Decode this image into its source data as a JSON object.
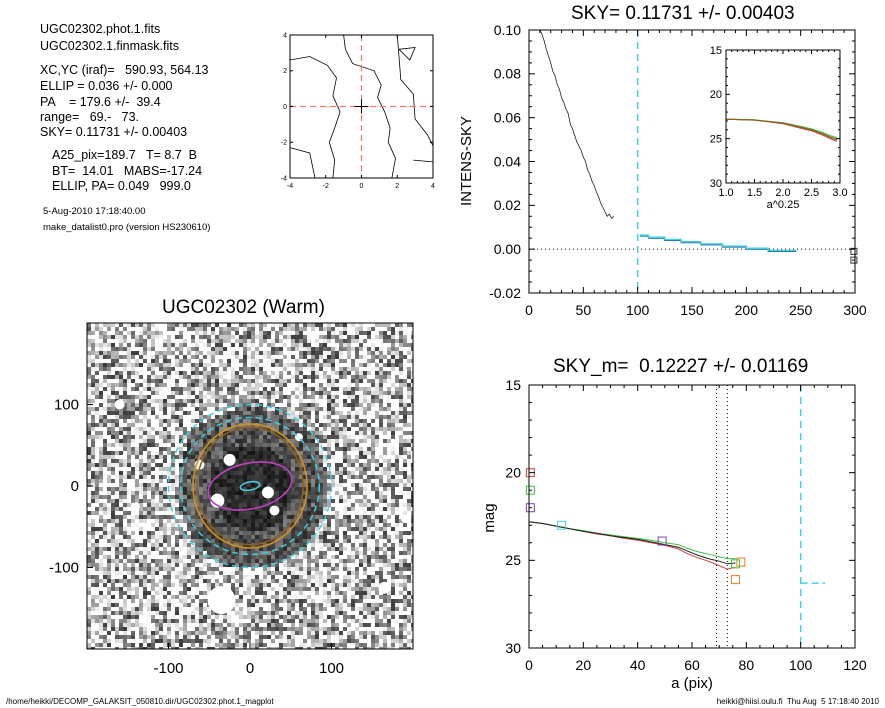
{
  "info": {
    "lines": [
      "UGC02302.phot.1.fits",
      "UGC02302.1.finmask.fits",
      "XC,YC (iraf)=   590.93, 564.13",
      "ELLIP = 0.036 +/- 0.000",
      "PA    = 179.6 +/-  39.4",
      "range=   69.-   73.",
      "SKY= 0.11731 +/- 0.00403",
      "A25_pix=189.7   T= 8.7  B",
      "BT=  14.01   MABS=-17.24",
      "ELLIP, PA= 0.049   999.0",
      "5-Aug-2010 17:18:40.00",
      "make_datalist0.pro (version HS230610)"
    ]
  },
  "footer": {
    "left": "/home/heikki/DECOMP_GALAKSIT_050810.dir/UGC02302.phot.1_magplot",
    "right": "heikki@hiisi.oulu.fi  Thu Aug  5 17:18:40 2010"
  },
  "colors": {
    "sky_line": "#40d0e0",
    "red_dash": "#ff7070",
    "trace_black": "#202020",
    "green": "#40c040",
    "red": "#d04040",
    "brown": "#8a6020",
    "purple": "#8040a0",
    "orange": "#e08020",
    "magenta": "#c040c0",
    "gold": "#d09020"
  },
  "chart_data": [
    {
      "id": "contour",
      "type": "contour",
      "title": "",
      "xlim": [
        -4,
        4
      ],
      "ylim": [
        -4,
        4
      ],
      "xticks": [
        -4,
        -2,
        0,
        2,
        4
      ],
      "yticks": [
        -4,
        -2,
        0,
        2,
        4
      ],
      "contours": [
        [
          [
            -4,
            2.6
          ],
          [
            -2.9,
            2.8
          ],
          [
            -1.9,
            2.3
          ],
          [
            -1.4,
            1.6
          ],
          [
            -1.6,
            0.6
          ],
          [
            -1.2,
            -0.3
          ],
          [
            -1.5,
            -1.2
          ],
          [
            -1.8,
            -2.0
          ],
          [
            -1.5,
            -3.0
          ],
          [
            -1.6,
            -4
          ]
        ],
        [
          [
            -1.0,
            4
          ],
          [
            -0.9,
            3.2
          ],
          [
            -0.5,
            2.4
          ],
          [
            0.7,
            2.0
          ],
          [
            1.1,
            1.2
          ],
          [
            0.9,
            0.5
          ],
          [
            1.3,
            -0.3
          ],
          [
            1.6,
            -1.2
          ],
          [
            1.5,
            -2.0
          ],
          [
            1.9,
            -2.9
          ],
          [
            1.7,
            -4
          ]
        ],
        [
          [
            2.1,
            3.2
          ],
          [
            3.0,
            3.3
          ],
          [
            2.7,
            2.6
          ],
          [
            2.1,
            3.2
          ]
        ],
        [
          [
            2.0,
            4
          ],
          [
            2.2,
            1.5
          ],
          [
            2.9,
            0.7
          ],
          [
            3.0,
            -0.7
          ],
          [
            3.7,
            -1.6
          ],
          [
            4,
            -2.2
          ]
        ],
        [
          [
            -4,
            -2.3
          ],
          [
            -2.9,
            -2.6
          ],
          [
            -2.6,
            -4
          ]
        ],
        [
          [
            2.9,
            -3.0
          ],
          [
            4,
            -3.1
          ]
        ]
      ],
      "crosshair": [
        0,
        0
      ]
    },
    {
      "id": "profile",
      "type": "line",
      "title": "SKY= 0.11731 +/- 0.00403",
      "xlabel": "",
      "ylabel": "INTENS-SKY",
      "xlim": [
        0,
        300
      ],
      "ylim": [
        -0.02,
        0.1
      ],
      "xticks": [
        0,
        50,
        100,
        150,
        200,
        250,
        300
      ],
      "yticks": [
        -0.02,
        0.0,
        0.02,
        0.04,
        0.06,
        0.08,
        0.1
      ],
      "ytick_labels": [
        "-0.02",
        "0.00",
        "0.02",
        "0.04",
        "0.06",
        "0.08",
        "0.10"
      ],
      "vline": 100,
      "hline": 0,
      "series": [
        {
          "color": "trace_black",
          "x": [
            10,
            12,
            14,
            16,
            18,
            20,
            22,
            24,
            26,
            28,
            30,
            32,
            34,
            36,
            38,
            40,
            42,
            44,
            46,
            48,
            50,
            52,
            54,
            56,
            58,
            60,
            62,
            64,
            66,
            68,
            70,
            72,
            74,
            76,
            78
          ],
          "y": [
            0.1,
            0.098,
            0.095,
            0.091,
            0.088,
            0.085,
            0.081,
            0.079,
            0.075,
            0.073,
            0.069,
            0.067,
            0.064,
            0.062,
            0.057,
            0.055,
            0.052,
            0.049,
            0.047,
            0.045,
            0.042,
            0.04,
            0.036,
            0.034,
            0.031,
            0.029,
            0.026,
            0.024,
            0.021,
            0.019,
            0.017,
            0.015,
            0.016,
            0.014,
            0.015
          ]
        },
        {
          "color": "sky_line",
          "x": [
            102,
            110,
            110,
            125,
            125,
            140,
            140,
            158,
            158,
            178,
            178,
            200,
            200,
            220,
            220,
            246
          ],
          "y": [
            0.006,
            0.006,
            0.005,
            0.005,
            0.004,
            0.004,
            0.003,
            0.003,
            0.002,
            0.002,
            0.001,
            0.001,
            0.0,
            0.0,
            -0.001,
            -0.001
          ]
        }
      ],
      "edge_markers": [
        [
          299,
          -0.001
        ],
        [
          299,
          -0.005
        ]
      ]
    },
    {
      "id": "inset",
      "type": "line",
      "title": "",
      "xlabel": "a^0.25",
      "ylabel": "",
      "xlim": [
        1.0,
        3.0
      ],
      "ylim": [
        30,
        15
      ],
      "xticks": [
        1.0,
        1.5,
        2.0,
        2.5,
        3.0
      ],
      "xtick_labels": [
        "1.0",
        "1.5",
        "2.0",
        "2.5",
        "3.0"
      ],
      "yticks": [
        15,
        20,
        25,
        30
      ],
      "series": [
        {
          "color": "red",
          "x": [
            1.0,
            1.5,
            2.0,
            2.3,
            2.5,
            2.7,
            2.8,
            2.95
          ],
          "y": [
            22.8,
            22.9,
            23.3,
            23.8,
            24.1,
            24.6,
            24.9,
            25.3
          ]
        },
        {
          "color": "green",
          "x": [
            1.0,
            1.5,
            2.0,
            2.3,
            2.5,
            2.7,
            2.8,
            2.95
          ],
          "y": [
            22.8,
            22.9,
            23.2,
            23.6,
            23.9,
            24.3,
            24.6,
            24.9
          ]
        },
        {
          "color": "brown",
          "x": [
            1.0,
            1.5,
            2.0,
            2.3,
            2.5,
            2.7,
            2.8,
            2.95
          ],
          "y": [
            22.8,
            22.9,
            23.25,
            23.7,
            24.0,
            24.45,
            24.75,
            25.1
          ]
        }
      ]
    },
    {
      "id": "image",
      "type": "image",
      "title": "UGC02302 (Warm)",
      "xlim": [
        -200,
        200
      ],
      "ylim": [
        -200,
        200
      ],
      "xticks": [
        -100,
        0,
        100
      ],
      "yticks": [
        -100,
        0,
        100
      ],
      "ellipses": [
        {
          "color": "sky_line",
          "a": 100,
          "b": 100,
          "angle": 0,
          "dashed": true
        },
        {
          "color": "sky_line",
          "a": 85,
          "b": 84,
          "angle": 0,
          "dashed": true
        },
        {
          "color": "gold",
          "a": 70,
          "b": 76,
          "angle": 0,
          "dashed": false
        },
        {
          "color": "brown",
          "a": 65,
          "b": 72,
          "angle": 0,
          "dashed": false
        },
        {
          "color": "magenta",
          "a": 52,
          "b": 28,
          "angle": -12,
          "dashed": false
        },
        {
          "color": "sky_line",
          "a": 12,
          "b": 5,
          "angle": -10,
          "dashed": false
        }
      ]
    },
    {
      "id": "magnitude",
      "type": "line",
      "title": "SKY_m=  0.12227 +/- 0.01169",
      "xlabel": "a (pix)",
      "ylabel": "mag",
      "xlim": [
        0,
        120
      ],
      "ylim": [
        30,
        15
      ],
      "xticks": [
        0,
        20,
        40,
        60,
        80,
        100,
        120
      ],
      "yticks": [
        15,
        20,
        25,
        30
      ],
      "vlines_dotted": [
        69,
        73
      ],
      "sky_vline": 100,
      "sky_hline": {
        "x": [
          100,
          109
        ],
        "y": 26.3
      },
      "series": [
        {
          "color": "red",
          "x": [
            0,
            5,
            10,
            15,
            20,
            25,
            30,
            35,
            40,
            45,
            50,
            55,
            58,
            62,
            66,
            70,
            73,
            76
          ],
          "y": [
            22.8,
            22.9,
            23.05,
            23.2,
            23.35,
            23.5,
            23.6,
            23.75,
            23.85,
            24.0,
            24.15,
            24.35,
            24.6,
            24.85,
            25.05,
            25.3,
            25.5,
            25.4
          ]
        },
        {
          "color": "green",
          "x": [
            0,
            5,
            10,
            15,
            20,
            25,
            30,
            35,
            40,
            45,
            50,
            55,
            58,
            62,
            66,
            70,
            73,
            76
          ],
          "y": [
            22.8,
            22.9,
            23.05,
            23.2,
            23.3,
            23.45,
            23.55,
            23.65,
            23.75,
            23.85,
            24.0,
            24.1,
            24.3,
            24.5,
            24.65,
            24.8,
            24.9,
            24.9
          ]
        },
        {
          "color": "trace_black",
          "x": [
            0,
            5,
            10,
            15,
            20,
            25,
            30,
            35,
            40,
            45,
            50,
            55,
            58,
            62,
            66,
            70,
            73,
            76
          ],
          "y": [
            22.8,
            22.9,
            23.05,
            23.2,
            23.35,
            23.45,
            23.6,
            23.7,
            23.8,
            23.95,
            24.1,
            24.25,
            24.45,
            24.7,
            24.9,
            25.05,
            25.2,
            25.15
          ]
        }
      ],
      "markers": [
        {
          "x": 0.5,
          "y": 20,
          "color": "red"
        },
        {
          "x": 0.5,
          "y": 21,
          "color": "green"
        },
        {
          "x": 0.5,
          "y": 22,
          "color": "purple"
        },
        {
          "x": 12,
          "y": 23.0,
          "color": "sky_line"
        },
        {
          "x": 49,
          "y": 23.9,
          "color": "purple"
        },
        {
          "x": 76,
          "y": 25.2,
          "color": "green"
        },
        {
          "x": 76,
          "y": 26.1,
          "color": "orange"
        },
        {
          "x": 78,
          "y": 25.1,
          "color": "orange"
        }
      ]
    }
  ]
}
